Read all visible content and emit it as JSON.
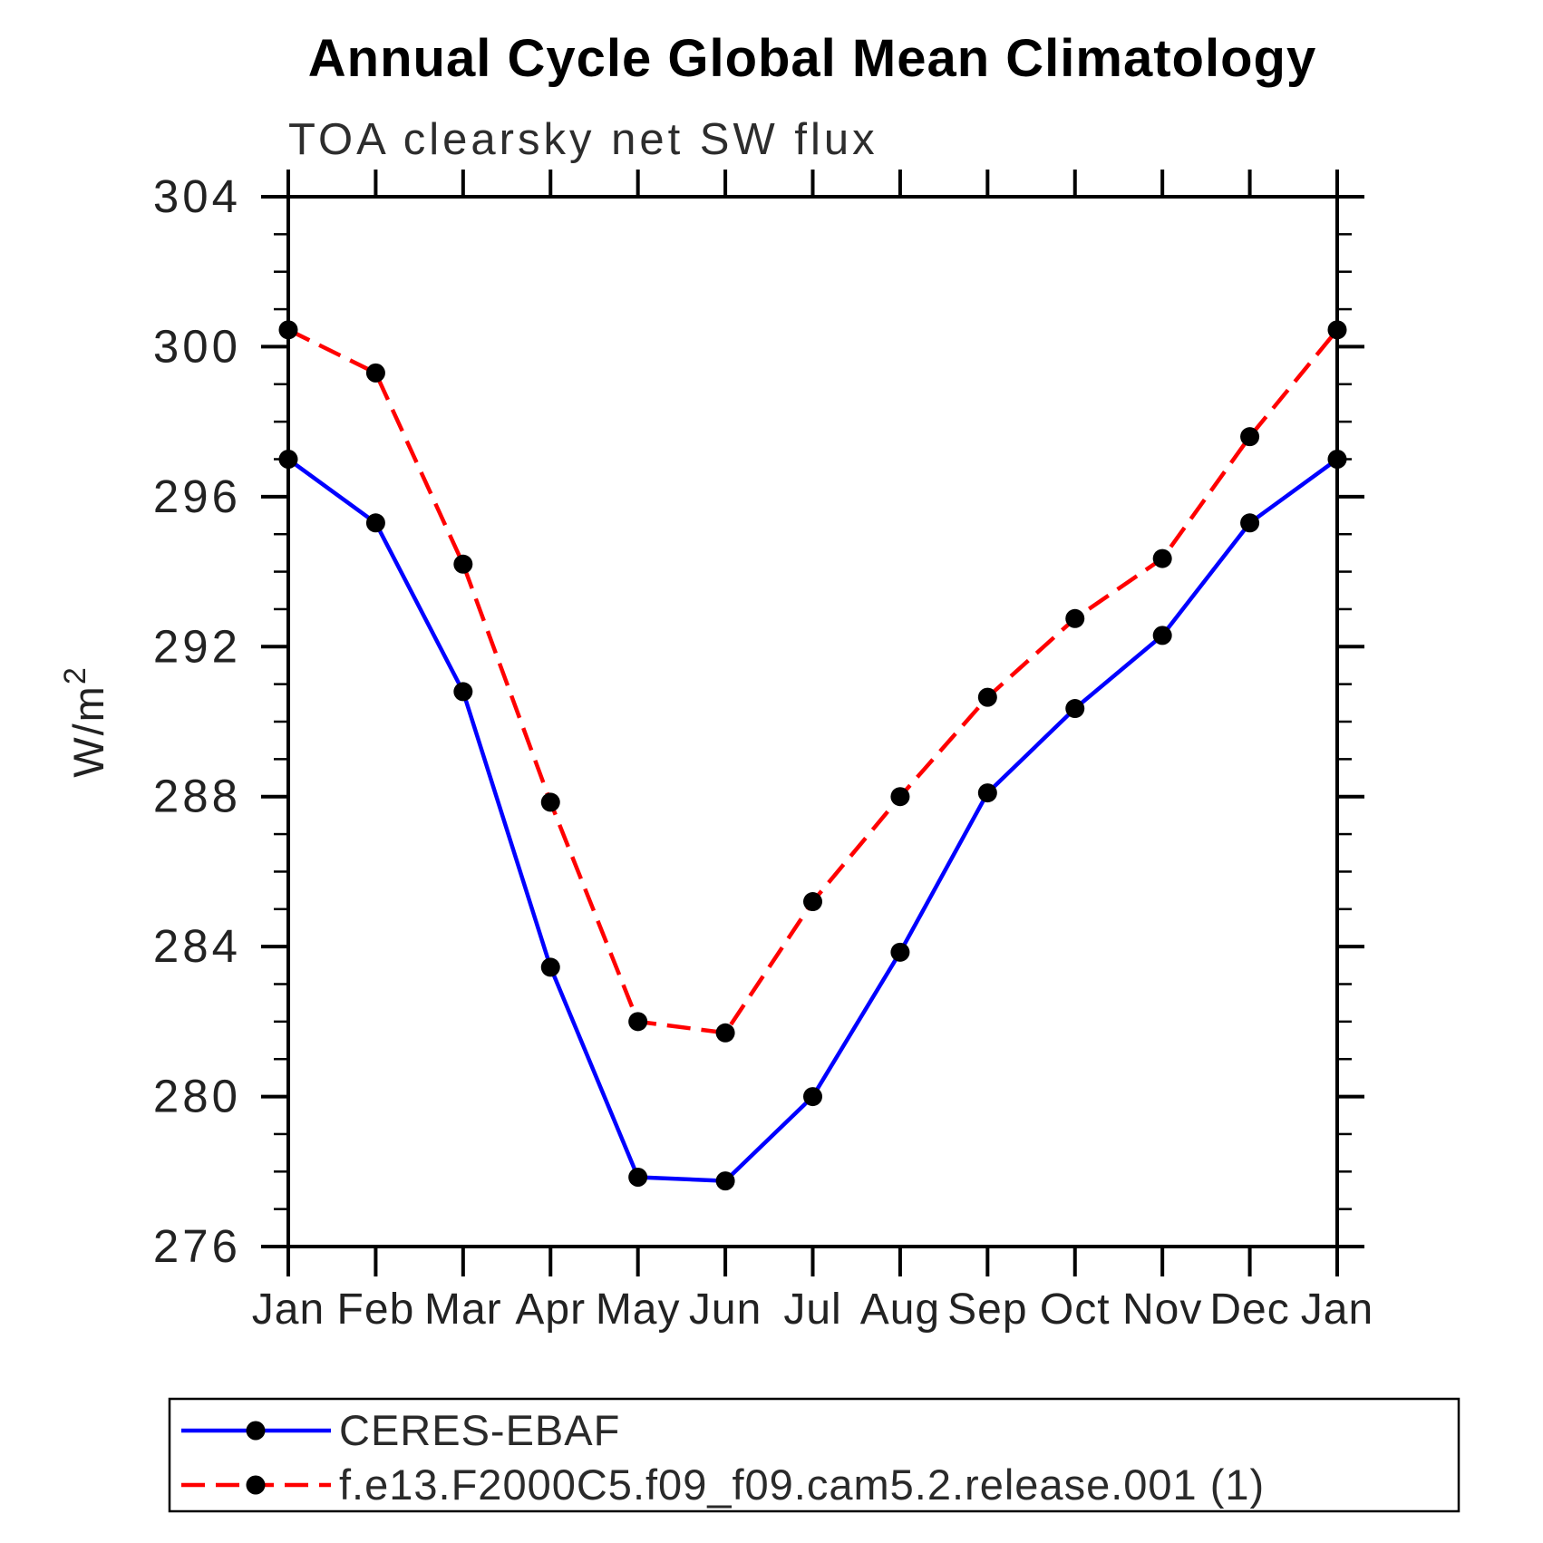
{
  "title": "Annual Cycle Global Mean Climatology",
  "subtitle": "TOA clearsky net SW flux",
  "chart_data": {
    "type": "line",
    "title": "Annual Cycle Global Mean Climatology",
    "subtitle": "TOA clearsky net SW flux",
    "ylabel": "W/m²",
    "ylabel_base": "W/m",
    "ylabel_sup": "2",
    "xlabel": "",
    "x_categories": [
      "Jan",
      "Feb",
      "Mar",
      "Apr",
      "May",
      "Jun",
      "Jul",
      "Aug",
      "Sep",
      "Oct",
      "Nov",
      "Dec",
      "Jan"
    ],
    "ylim": [
      276,
      304
    ],
    "y_major_ticks": [
      276,
      280,
      284,
      288,
      292,
      296,
      300,
      304
    ],
    "y_minor_step": 1,
    "grid": "off",
    "tick_direction": "out",
    "frame": "box",
    "legend_position": "bottom-left-box",
    "axis_color": "#000000",
    "series": [
      {
        "name": "CERES-EBAF",
        "line_color": "#0000ff",
        "line_style": "solid",
        "marker": "filled-circle",
        "marker_color": "#000000",
        "values": [
          297.0,
          295.3,
          290.8,
          283.45,
          277.85,
          277.75,
          280.0,
          283.85,
          288.1,
          290.35,
          292.3,
          295.3,
          297.0
        ]
      },
      {
        "name": "f.e13.F2000C5.f09_f09.cam5.2.release.001 (1)",
        "line_color": "#ff0000",
        "line_style": "dashed",
        "marker": "filled-circle",
        "marker_color": "#000000",
        "values": [
          300.45,
          299.3,
          294.2,
          287.85,
          282.0,
          281.7,
          285.2,
          288.0,
          290.65,
          292.75,
          294.35,
          297.6,
          300.45
        ]
      }
    ]
  }
}
